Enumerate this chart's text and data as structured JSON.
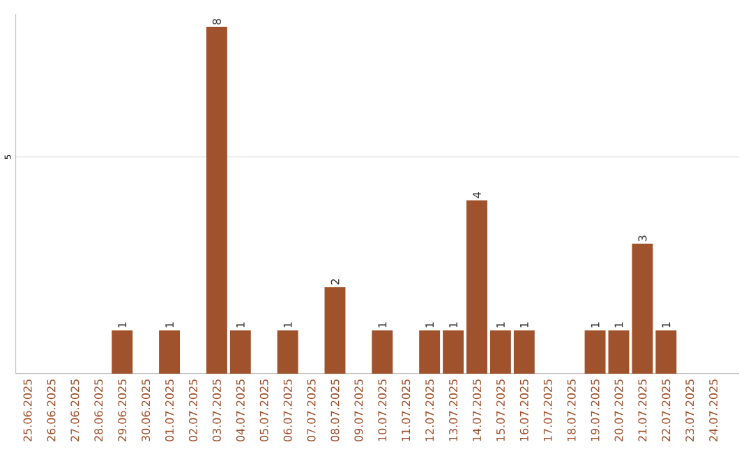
{
  "chart_data": {
    "type": "bar",
    "categories": [
      "25.06.2025",
      "26.06.2025",
      "27.06.2025",
      "28.06.2025",
      "29.06.2025",
      "30.06.2025",
      "01.07.2025",
      "02.07.2025",
      "03.07.2025",
      "04.07.2025",
      "05.07.2025",
      "06.07.2025",
      "07.07.2025",
      "08.07.2025",
      "09.07.2025",
      "10.07.2025",
      "11.07.2025",
      "12.07.2025",
      "13.07.2025",
      "14.07.2025",
      "15.07.2025",
      "16.07.2025",
      "17.07.2025",
      "18.07.2025",
      "19.07.2025",
      "20.07.2025",
      "21.07.2025",
      "22.07.2025",
      "23.07.2025",
      "24.07.2025"
    ],
    "values": [
      0,
      0,
      0,
      0,
      1,
      0,
      1,
      0,
      8,
      1,
      0,
      1,
      0,
      2,
      0,
      1,
      0,
      1,
      1,
      4,
      1,
      1,
      0,
      0,
      1,
      1,
      3,
      1,
      0,
      0
    ],
    "value_labels": [
      null,
      null,
      null,
      null,
      "1",
      null,
      "1",
      null,
      "8",
      "1",
      null,
      "1",
      null,
      "2",
      null,
      "1",
      null,
      "1",
      "1",
      "4",
      "1",
      "1",
      null,
      null,
      "1",
      "1",
      "3",
      "1",
      null,
      null
    ],
    "color": "#a0522d",
    "ylim": [
      0,
      8.3
    ],
    "yticks": [
      5
    ],
    "grid": "y"
  }
}
